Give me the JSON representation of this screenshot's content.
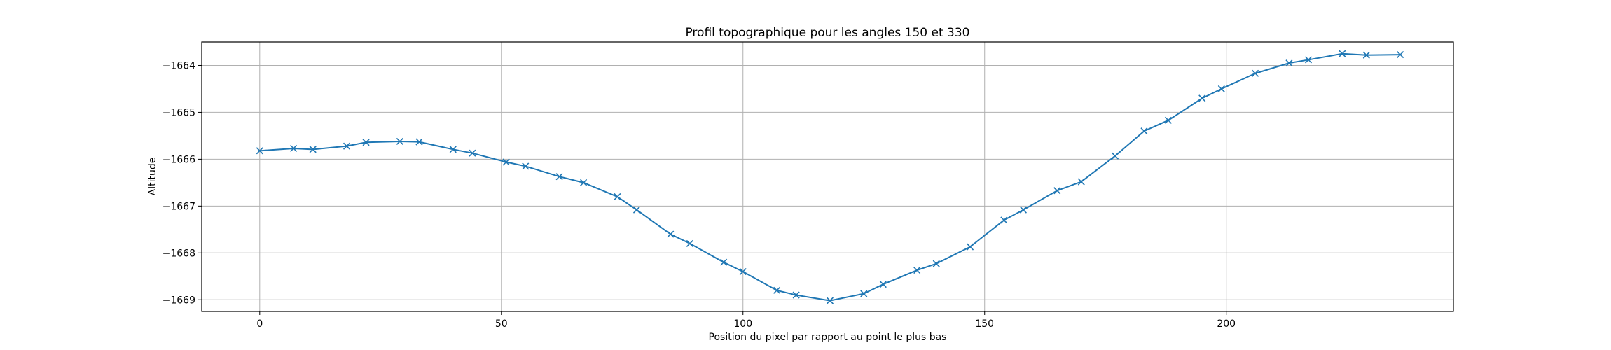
{
  "chart_data": {
    "type": "line",
    "title": "Profil topographique pour les angles 150 et 330",
    "xlabel": "Position du pixel par rapport au point le plus bas",
    "ylabel": "Altitude",
    "xlim": [
      -12,
      247
    ],
    "ylim": [
      -1669.25,
      -1663.5
    ],
    "xticks": [
      0,
      50,
      100,
      150,
      200
    ],
    "yticks": [
      -1664,
      -1665,
      -1666,
      -1667,
      -1668,
      -1669
    ],
    "ytick_labels": [
      "−1664",
      "−1665",
      "−1666",
      "−1667",
      "−1668",
      "−1669"
    ],
    "grid": true,
    "marker": "x",
    "color": "#1f77b4",
    "series": [
      {
        "x": [
          0,
          7,
          11,
          18,
          22,
          29,
          33,
          40,
          44,
          51,
          55,
          62,
          67,
          74,
          78,
          85,
          89,
          96,
          100,
          107,
          111,
          118,
          125,
          129,
          136,
          140,
          147,
          154,
          158,
          165,
          170,
          177,
          183,
          188,
          195,
          199,
          206,
          213,
          217,
          224,
          229,
          236
        ],
        "y": [
          -1665.82,
          -1665.77,
          -1665.79,
          -1665.72,
          -1665.64,
          -1665.62,
          -1665.63,
          -1665.79,
          -1665.87,
          -1666.06,
          -1666.15,
          -1666.37,
          -1666.5,
          -1666.8,
          -1667.08,
          -1667.6,
          -1667.8,
          -1668.2,
          -1668.4,
          -1668.8,
          -1668.9,
          -1669.02,
          -1668.87,
          -1668.67,
          -1668.37,
          -1668.23,
          -1667.87,
          -1667.3,
          -1667.08,
          -1666.67,
          -1666.48,
          -1665.93,
          -1665.4,
          -1665.17,
          -1664.7,
          -1664.5,
          -1664.17,
          -1663.95,
          -1663.88,
          -1663.75,
          -1663.78,
          -1663.77
        ]
      }
    ]
  }
}
